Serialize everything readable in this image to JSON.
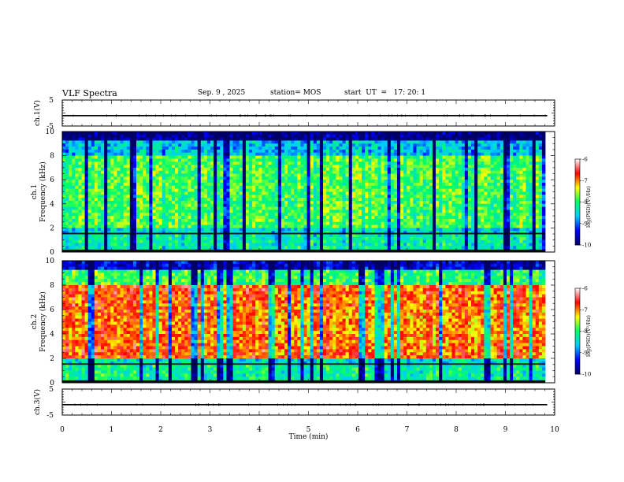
{
  "header": {
    "title": "VLF Spectra",
    "date": "Sep. 9 , 2025",
    "station": "station= MOS",
    "start": "start  UT  =   17: 20: 1"
  },
  "chart_data": [
    {
      "type": "line",
      "panel": "ch1-waveform",
      "ylabel": "ch.1(V)",
      "ylim": [
        -5,
        5
      ],
      "yticks": [
        "5",
        "-5"
      ],
      "xlim": [
        0,
        10
      ],
      "series": [
        {
          "values": [
            -1,
            -1,
            -1,
            -1,
            -1,
            -1,
            -1,
            -1,
            -1,
            -1,
            -1
          ]
        }
      ]
    },
    {
      "type": "heatmap",
      "panel": "ch1-spectrogram",
      "ylabel_line1": "ch.1",
      "ylabel_line2": "Frequency  (kHz)",
      "ylim": [
        0,
        10
      ],
      "yticks": [
        "0",
        "2",
        "4",
        "6",
        "8",
        "10"
      ],
      "xlim": [
        0,
        9.85
      ],
      "colorbar": {
        "label": "log(PSD)(V²/Hz)",
        "range": [
          -10,
          -6
        ],
        "ticks": [
          "-6",
          "-7",
          "-8",
          "-9",
          "-10"
        ],
        "colors": [
          "#000066",
          "#0000ff",
          "#00ccff",
          "#00ff66",
          "#ffff00",
          "#ff0000",
          "#ffffff"
        ]
      },
      "description_levels": {
        "low_band_0_1.5kHz": -8.5,
        "mid_band_2_8kHz": -7.9,
        "top_band_9_10kHz": -9.4
      }
    },
    {
      "type": "heatmap",
      "panel": "ch2-spectrogram",
      "ylabel_line1": "ch.2",
      "ylabel_line2": "Frequency  (kHz)",
      "ylim": [
        0,
        10
      ],
      "yticks": [
        "0",
        "2",
        "4",
        "6",
        "8",
        "10"
      ],
      "xlim": [
        0,
        9.85
      ],
      "colorbar": {
        "label": "log(PSD)(V²/Hz)",
        "range": [
          -10,
          -6
        ],
        "ticks": [
          "-6",
          "-7",
          "-8",
          "-9",
          "-10"
        ],
        "colors": [
          "#000066",
          "#0000ff",
          "#00ccff",
          "#00ff66",
          "#ffff00",
          "#ff0000",
          "#ffffff"
        ]
      },
      "description_levels": {
        "low_band_0_1.5kHz": -8.4,
        "mid_band_2_8kHz": -6.9,
        "top_band_9_10kHz": -9.0
      }
    },
    {
      "type": "line",
      "panel": "ch3-waveform",
      "ylabel": "ch.3(V)",
      "ylim": [
        -5,
        5
      ],
      "yticks": [
        "5",
        "-5"
      ],
      "xlim": [
        0,
        10
      ],
      "xlabel": "Time  (min)",
      "xticks": [
        "0",
        "1",
        "2",
        "3",
        "4",
        "5",
        "6",
        "7",
        "8",
        "9",
        "10"
      ],
      "series": [
        {
          "values": [
            -1,
            -1,
            -1,
            -1,
            -1,
            -1,
            -1,
            -1,
            -1,
            -1,
            -1
          ]
        }
      ]
    }
  ]
}
